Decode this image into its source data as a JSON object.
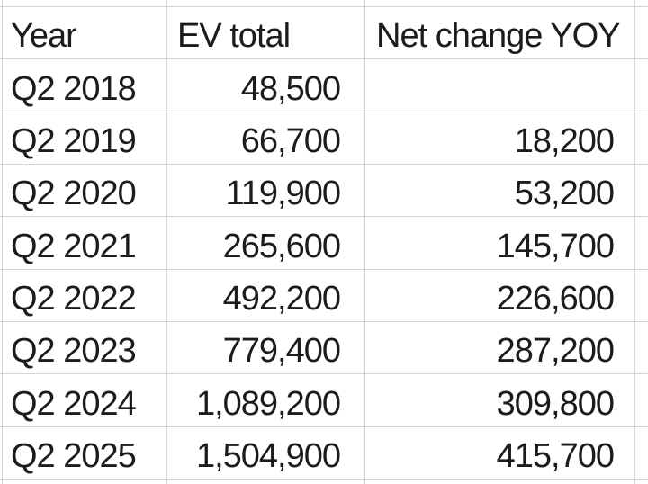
{
  "table": {
    "headers": {
      "year": "Year",
      "ev_total": "EV total",
      "net_change": "Net change YOY"
    },
    "rows": [
      {
        "year": "Q2 2018",
        "ev_total": "48,500",
        "net_change": ""
      },
      {
        "year": "Q2 2019",
        "ev_total": "66,700",
        "net_change": "18,200"
      },
      {
        "year": "Q2 2020",
        "ev_total": "119,900",
        "net_change": "53,200"
      },
      {
        "year": "Q2 2021",
        "ev_total": "265,600",
        "net_change": "145,700"
      },
      {
        "year": "Q2 2022",
        "ev_total": "492,200",
        "net_change": "226,600"
      },
      {
        "year": "Q2 2023",
        "ev_total": "779,400",
        "net_change": "287,200"
      },
      {
        "year": "Q2 2024",
        "ev_total": "1,089,200",
        "net_change": "309,800"
      },
      {
        "year": "Q2 2025",
        "ev_total": "1,504,900",
        "net_change": "415,700"
      }
    ]
  },
  "colors": {
    "gridline": "#d3d6d9",
    "text": "#1c1c1c",
    "cell_background": "#ffffff"
  }
}
